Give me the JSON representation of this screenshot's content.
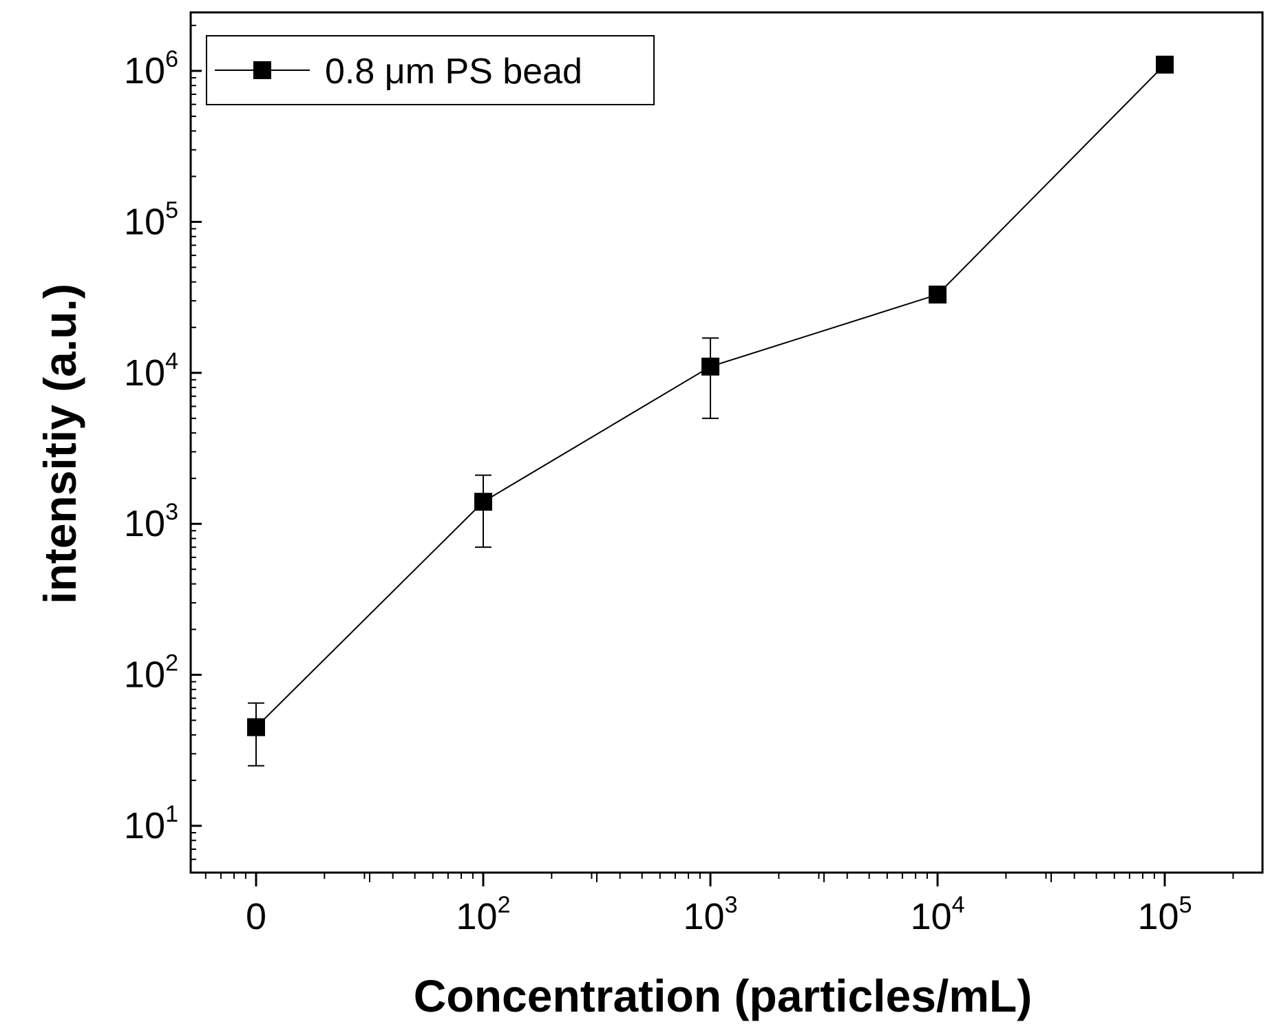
{
  "chart_data": {
    "type": "line",
    "title": "",
    "xlabel": "Concentration (particles/mL)",
    "ylabel": "intensitiy (a.u.)",
    "x_scale": "categorical-log",
    "y_scale": "log",
    "ylim": [
      5,
      2500000
    ],
    "grid": false,
    "legend_position": "top-left",
    "x_tick_labels": [
      {
        "base": "0",
        "exp": ""
      },
      {
        "base": "10",
        "exp": "2"
      },
      {
        "base": "10",
        "exp": "3"
      },
      {
        "base": "10",
        "exp": "4"
      },
      {
        "base": "10",
        "exp": "5"
      }
    ],
    "y_tick_labels": [
      {
        "base": "10",
        "exp": "1",
        "value": 10
      },
      {
        "base": "10",
        "exp": "2",
        "value": 100
      },
      {
        "base": "10",
        "exp": "3",
        "value": 1000
      },
      {
        "base": "10",
        "exp": "4",
        "value": 10000
      },
      {
        "base": "10",
        "exp": "5",
        "value": 100000
      },
      {
        "base": "10",
        "exp": "6",
        "value": 1000000
      }
    ],
    "series": [
      {
        "name": "0.8 μm PS bead",
        "marker": "square",
        "color": "#000000",
        "x": [
          "0",
          "10^2",
          "10^3",
          "10^4",
          "10^5"
        ],
        "y": [
          45,
          1400,
          11000,
          33000,
          1100000
        ],
        "err_low": [
          25,
          700,
          5000,
          31000,
          1050000
        ],
        "err_high": [
          65,
          2100,
          17000,
          35000,
          1150000
        ]
      }
    ]
  }
}
